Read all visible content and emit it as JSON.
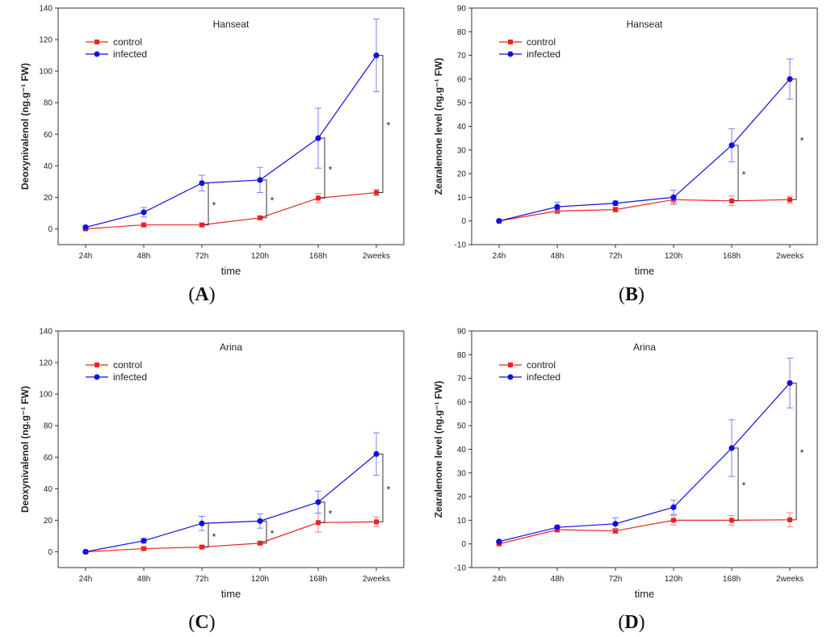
{
  "colors": {
    "control": "#ee2222",
    "infected": "#1111dd",
    "axis": "#333333",
    "bracket": "#333333"
  },
  "chart_data": [
    {
      "type": "line",
      "panel": "A",
      "title": "Hanseat",
      "xlabel": "time",
      "ylabel": "Deoxynivalenol (ng.g⁻¹ FW)",
      "categories": [
        "24h",
        "48h",
        "72h",
        "120h",
        "168h",
        "2weeks"
      ],
      "ylim": [
        -10,
        140
      ],
      "yticks": [
        0,
        20,
        40,
        60,
        80,
        100,
        120,
        140
      ],
      "legend": "top-left",
      "series": [
        {
          "name": "control",
          "values": [
            0,
            2.5,
            2.5,
            7,
            19.5,
            23
          ],
          "errors": [
            0.5,
            1,
            1,
            1,
            3,
            2
          ]
        },
        {
          "name": "infected",
          "values": [
            1,
            10.5,
            29,
            31,
            57.5,
            110
          ],
          "errors": [
            0.5,
            3,
            5,
            8,
            19,
            23
          ]
        }
      ],
      "significance": [
        "",
        "",
        "*",
        "*",
        "*",
        "*"
      ]
    },
    {
      "type": "line",
      "panel": "B",
      "title": "Hanseat",
      "xlabel": "time",
      "ylabel": "Zearalenone level (ng.g⁻¹ FW)",
      "categories": [
        "24h",
        "48h",
        "72h",
        "120h",
        "168h",
        "2weeks"
      ],
      "ylim": [
        -10,
        90
      ],
      "yticks": [
        -10,
        0,
        10,
        20,
        30,
        40,
        50,
        60,
        70,
        80,
        90
      ],
      "legend": "top-left",
      "series": [
        {
          "name": "control",
          "values": [
            0,
            4.2,
            4.8,
            9,
            8.5,
            9
          ],
          "errors": [
            0.3,
            1,
            1,
            1.5,
            2,
            1.5
          ]
        },
        {
          "name": "infected",
          "values": [
            0,
            6,
            7.5,
            10,
            32,
            60
          ],
          "errors": [
            0.3,
            2,
            1,
            3,
            7,
            8.5
          ]
        }
      ],
      "significance": [
        "",
        "",
        "",
        "",
        "*",
        "*"
      ]
    },
    {
      "type": "line",
      "panel": "C",
      "title": "Arina",
      "xlabel": "time",
      "ylabel": "Deoxynivalenol (ng.g⁻¹ FW)",
      "categories": [
        "24h",
        "48h",
        "72h",
        "120h",
        "168h",
        "2weeks"
      ],
      "ylim": [
        -10,
        140
      ],
      "yticks": [
        0,
        20,
        40,
        60,
        80,
        100,
        120,
        140
      ],
      "legend": "top-left",
      "series": [
        {
          "name": "control",
          "values": [
            0,
            2,
            3,
            5.5,
            18.5,
            19
          ],
          "errors": [
            0.5,
            1,
            1,
            1,
            6,
            3
          ]
        },
        {
          "name": "infected",
          "values": [
            0,
            7,
            18,
            19.5,
            31.5,
            62
          ],
          "errors": [
            0.5,
            1.5,
            4.5,
            4.5,
            7,
            13.5
          ]
        }
      ],
      "significance": [
        "",
        "",
        "*",
        "*",
        "*",
        "*"
      ]
    },
    {
      "type": "line",
      "panel": "D",
      "title": "Arina",
      "xlabel": "time",
      "ylabel": "Zearalenone level (ng.g⁻¹ FW)",
      "categories": [
        "24h",
        "48h",
        "72h",
        "120h",
        "168h",
        "2weeks"
      ],
      "ylim": [
        -10,
        90
      ],
      "yticks": [
        -10,
        0,
        10,
        20,
        30,
        40,
        50,
        60,
        70,
        80,
        90
      ],
      "legend": "top-left",
      "series": [
        {
          "name": "control",
          "values": [
            0,
            6,
            5.5,
            10,
            10,
            10.2
          ],
          "errors": [
            0.3,
            1,
            1,
            2,
            2,
            3
          ]
        },
        {
          "name": "infected",
          "values": [
            1,
            7,
            8.5,
            15.5,
            40.5,
            68
          ],
          "errors": [
            0.3,
            1,
            2.5,
            3,
            12,
            10.5
          ]
        }
      ],
      "significance": [
        "",
        "",
        "",
        "",
        "*",
        "*"
      ]
    }
  ],
  "panel_labels": [
    "A",
    "B",
    "C",
    "D"
  ]
}
